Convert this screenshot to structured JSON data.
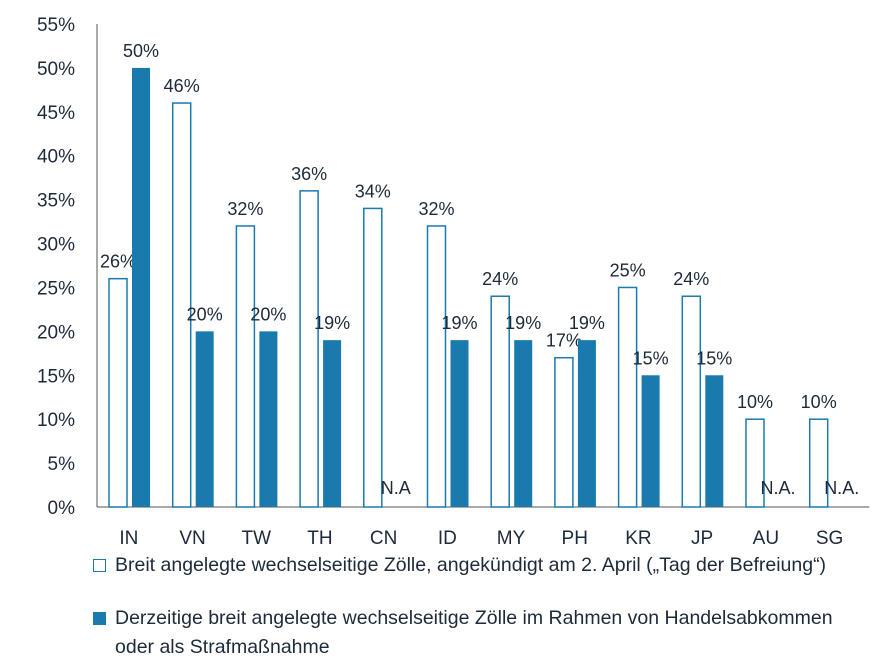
{
  "chart_data": {
    "type": "bar",
    "categories": [
      "IN",
      "VN",
      "TW",
      "TH",
      "CN",
      "ID",
      "MY",
      "PH",
      "KR",
      "JP",
      "AU",
      "SG"
    ],
    "series": [
      {
        "name": "Breit angelegte wechselseitige Zölle, angekündigt am 2. April („Tag der Befreiung“)",
        "values": [
          26,
          46,
          32,
          36,
          34,
          32,
          24,
          17,
          25,
          24,
          10,
          10
        ],
        "labels": [
          "26%",
          "46%",
          "32%",
          "36%",
          "34%",
          "32%",
          "24%",
          "17%",
          "25%",
          "24%",
          "10%",
          "10%"
        ],
        "style": "outline",
        "color": "#1a7aad"
      },
      {
        "name": "Derzeitige breit angelegte wechselseitige Zölle im Rahmen von Handelsabkommen oder als Strafmaßnahme",
        "values": [
          50,
          20,
          20,
          19,
          null,
          19,
          19,
          19,
          15,
          15,
          null,
          null
        ],
        "labels": [
          "50%",
          "20%",
          "20%",
          "19%",
          "N.A",
          "19%",
          "19%",
          "19%",
          "15%",
          "15%",
          "N.A.",
          "N.A."
        ],
        "style": "filled",
        "color": "#1a7aad"
      }
    ],
    "yticks": [
      "0%",
      "5%",
      "10%",
      "15%",
      "20%",
      "25%",
      "30%",
      "35%",
      "40%",
      "45%",
      "50%",
      "55%"
    ],
    "ylim": [
      0,
      55
    ],
    "grid": false,
    "legend_position": "bottom"
  }
}
